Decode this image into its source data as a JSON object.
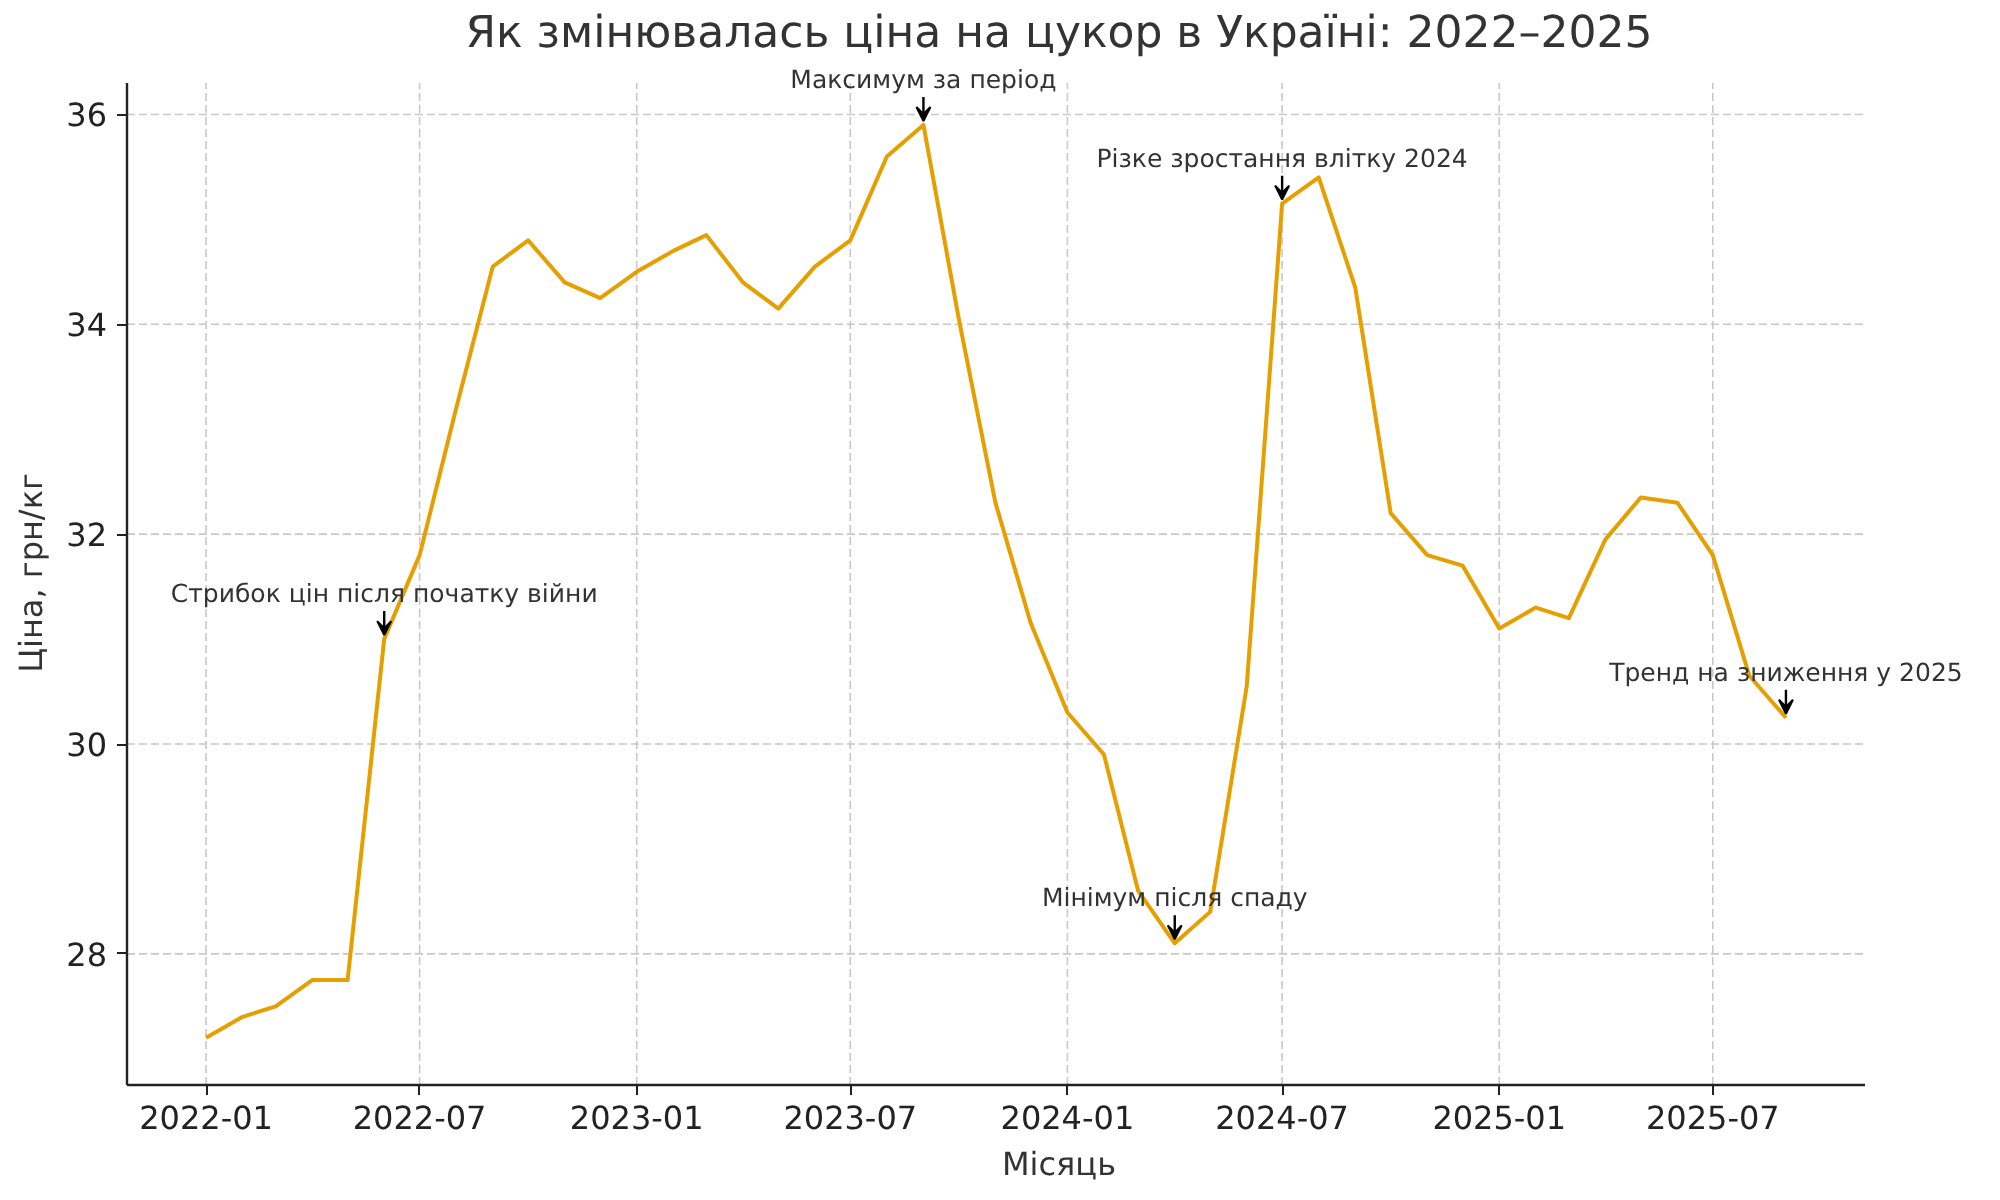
{
  "chart_data": {
    "type": "line",
    "title": "Як змінювалась ціна на цукор в Україні: 2022–2025",
    "xlabel": "Місяць",
    "ylabel": "Ціна, грн/кг",
    "x": [
      "2022-01",
      "2022-02",
      "2022-03",
      "2022-04",
      "2022-05",
      "2022-06",
      "2022-07",
      "2022-08",
      "2022-09",
      "2022-10",
      "2022-11",
      "2022-12",
      "2023-01",
      "2023-02",
      "2023-03",
      "2023-04",
      "2023-05",
      "2023-06",
      "2023-07",
      "2023-08",
      "2023-09",
      "2023-10",
      "2023-11",
      "2023-12",
      "2024-01",
      "2024-02",
      "2024-03",
      "2024-04",
      "2024-05",
      "2024-06",
      "2024-07",
      "2024-08",
      "2024-09",
      "2024-10",
      "2024-11",
      "2024-12",
      "2025-01",
      "2025-02",
      "2025-03",
      "2025-04",
      "2025-05",
      "2025-06",
      "2025-07",
      "2025-08",
      "2025-09"
    ],
    "series": [
      {
        "color": "#e69f00",
        "values": [
          27.2,
          27.4,
          27.5,
          27.75,
          27.75,
          31.0,
          31.8,
          33.2,
          34.55,
          34.8,
          34.4,
          34.25,
          34.5,
          34.7,
          34.85,
          34.4,
          34.15,
          34.55,
          34.8,
          35.6,
          35.9,
          34.05,
          32.3,
          31.15,
          30.3,
          29.9,
          28.6,
          28.1,
          28.4,
          30.55,
          35.15,
          35.4,
          34.35,
          32.2,
          31.8,
          31.7,
          31.1,
          31.3,
          31.2,
          31.95,
          32.35,
          32.3,
          31.8,
          30.65,
          30.25
        ]
      }
    ],
    "xlim": [
      "2021-10-26",
      "2025-11-07"
    ],
    "ylim": [
      26.75,
      36.3
    ],
    "xticks": [
      "2022-01",
      "2022-07",
      "2023-01",
      "2023-07",
      "2024-01",
      "2024-07",
      "2025-01",
      "2025-07"
    ],
    "yticks": [
      28,
      30,
      32,
      34,
      36
    ],
    "grid": true,
    "line_style": "solid",
    "annotations": [
      {
        "text": "Стрибок цін після початку війни",
        "x": "2022-06",
        "y": 31.0
      },
      {
        "text": "Максимум за період",
        "x": "2023-09",
        "y": 35.9
      },
      {
        "text": "Мінімум після спаду",
        "x": "2024-04",
        "y": 28.1
      },
      {
        "text": "Різке зростання влітку 2024",
        "x": "2024-07",
        "y": 35.15
      },
      {
        "text": "Тренд на зниження у 2025",
        "x": "2025-09",
        "y": 30.25
      }
    ]
  }
}
